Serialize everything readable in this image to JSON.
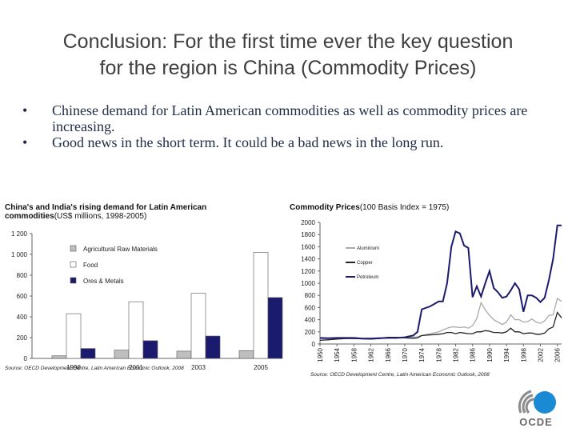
{
  "slide": {
    "title_line1": "Conclusion: For the first time ever the key question",
    "title_line2": "for the region is China (Commodity Prices)",
    "bullets": [
      "Chinese demand for Latin American commodities as well as commodity prices are increasing.",
      "Good news in the short term. It could be a bad news in the long run."
    ],
    "logo_text": "OCDE"
  },
  "colors": {
    "text": "#3f3f3f",
    "bullet_text": "#1f2a44",
    "navy": "#1a1a6e",
    "gray": "#bfbfbf",
    "white": "#ffffff",
    "logo_blue": "#1a8ad4",
    "logo_gray": "#8c8c8c"
  },
  "chart_data": [
    {
      "type": "bar",
      "title": "China's and India's rising demand for Latin American",
      "title_line2": "commodities",
      "subtitle": "(US$ millions, 1998-2005)",
      "categories": [
        "1998",
        "2001",
        "2003",
        "2005"
      ],
      "series": [
        {
          "name": "Agricultural Raw Materials",
          "color": "#bfbfbf",
          "values": [
            25,
            80,
            70,
            75
          ]
        },
        {
          "name": "Food",
          "color": "#ffffff",
          "values": [
            430,
            545,
            625,
            1020
          ]
        },
        {
          "name": "Ores & Metals",
          "color": "#1a1a6e",
          "values": [
            95,
            170,
            215,
            585
          ]
        }
      ],
      "ylim": [
        0,
        1200
      ],
      "yticks": [
        "0",
        "200",
        "400",
        "600",
        "800",
        "1 000",
        "1 200"
      ],
      "ytick_values": [
        0,
        200,
        400,
        600,
        800,
        1000,
        1200
      ],
      "source": "Source: OECD Development Centre, Latin American Economic Outlook, 2008"
    },
    {
      "type": "line",
      "title": "Commodity Prices",
      "subtitle": "(100 Basis Index = 1975)",
      "x": [
        1950,
        1952,
        1954,
        1956,
        1958,
        1960,
        1962,
        1964,
        1966,
        1968,
        1970,
        1972,
        1973,
        1974,
        1976,
        1978,
        1979,
        1980,
        1981,
        1982,
        1983,
        1984,
        1985,
        1986,
        1987,
        1988,
        1989,
        1990,
        1991,
        1992,
        1993,
        1994,
        1995,
        1996,
        1997,
        1998,
        1999,
        2000,
        2001,
        2002,
        2003,
        2004,
        2005,
        2006,
        2007
      ],
      "series": [
        {
          "name": "Aluminium",
          "color": "#aaaaaa",
          "values": [
            90,
            95,
            100,
            105,
            100,
            95,
            95,
            100,
            110,
            110,
            105,
            110,
            120,
            140,
            170,
            200,
            230,
            260,
            280,
            280,
            270,
            280,
            260,
            300,
            420,
            680,
            560,
            470,
            400,
            360,
            320,
            360,
            480,
            400,
            400,
            360,
            370,
            410,
            360,
            340,
            380,
            470,
            480,
            750,
            700
          ]
        },
        {
          "name": "Copper",
          "color": "#222222",
          "values": [
            60,
            70,
            80,
            90,
            90,
            85,
            80,
            90,
            110,
            110,
            100,
            95,
            100,
            140,
            150,
            160,
            170,
            190,
            190,
            170,
            190,
            180,
            170,
            170,
            200,
            200,
            220,
            210,
            190,
            190,
            180,
            200,
            260,
            200,
            200,
            170,
            180,
            180,
            160,
            160,
            180,
            250,
            280,
            520,
            430
          ]
        },
        {
          "name": "Petroleum",
          "color": "#1a1a6e",
          "values": [
            100,
            95,
            100,
            100,
            100,
            90,
            90,
            95,
            100,
            100,
            110,
            140,
            200,
            570,
            620,
            700,
            700,
            1000,
            1600,
            1850,
            1820,
            1620,
            1580,
            770,
            950,
            780,
            1000,
            1200,
            920,
            850,
            760,
            780,
            880,
            1000,
            900,
            530,
            800,
            800,
            760,
            690,
            760,
            1050,
            1400,
            1950,
            1950
          ]
        }
      ],
      "ylim": [
        0,
        2000
      ],
      "yticks": [
        "0",
        "200",
        "400",
        "600",
        "800",
        "1000",
        "1200",
        "1400",
        "1600",
        "1800",
        "2000"
      ],
      "ytick_values": [
        0,
        200,
        400,
        600,
        800,
        1000,
        1200,
        1400,
        1600,
        1800,
        2000
      ],
      "xticks": [
        "1950",
        "1954",
        "1958",
        "1962",
        "1966",
        "1970",
        "1974",
        "1978",
        "1982",
        "1986",
        "1990",
        "1994",
        "1998",
        "2002",
        "2006"
      ],
      "xtick_values": [
        1950,
        1954,
        1958,
        1962,
        1966,
        1970,
        1974,
        1978,
        1982,
        1986,
        1990,
        1994,
        1998,
        2002,
        2006
      ],
      "source": "Source: OECD Development Centre, Latin American Economic Outlook, 2008"
    }
  ]
}
